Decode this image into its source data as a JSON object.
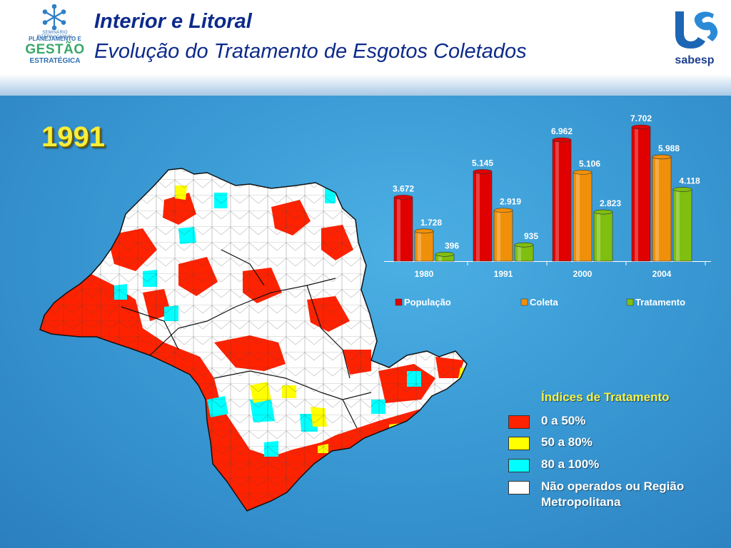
{
  "header": {
    "title_line1": "Interior e Litoral",
    "title_line2": "Evolução do Tratamento de Esgotos Coletados",
    "logo_left": {
      "seminar": "SEMINÁRIO INTERNACIONAL",
      "line1": "PLANEJAMENTO E",
      "line2": "GESTÃO",
      "line3": "ESTRATÉGICA"
    },
    "logo_right": {
      "name": "sabesp"
    }
  },
  "year_label": "1991",
  "map_legend": {
    "title": "Índices de Tratamento",
    "items": [
      {
        "label": "0 a 50%",
        "color": "#ff2200"
      },
      {
        "label": "50 a 80%",
        "color": "#ffff00"
      },
      {
        "label": "80 a 100%",
        "color": "#00ffff"
      },
      {
        "label": "Não operados ou Região",
        "label_line2": "Metropolitana",
        "color": "#ffffff"
      }
    ]
  },
  "chart_data": {
    "type": "bar",
    "categories": [
      "1980",
      "1991",
      "2000",
      "2004"
    ],
    "series": [
      {
        "name": "População",
        "color": "#e00000",
        "values": [
          3672,
          5145,
          6962,
          7702
        ],
        "labels": [
          "3.672",
          "5.145",
          "6.962",
          "7.702"
        ]
      },
      {
        "name": "Coleta",
        "color": "#f0900a",
        "values": [
          1728,
          2919,
          5106,
          5988
        ],
        "labels": [
          "1.728",
          "2.919",
          "5.106",
          "5.988"
        ]
      },
      {
        "name": "Tratamento",
        "color": "#7fbf10",
        "values": [
          396,
          935,
          2823,
          4118
        ],
        "labels": [
          "396",
          "935",
          "2.823",
          "4.118"
        ]
      }
    ],
    "ylim": [
      0,
      7702
    ],
    "legend": "bottom"
  }
}
